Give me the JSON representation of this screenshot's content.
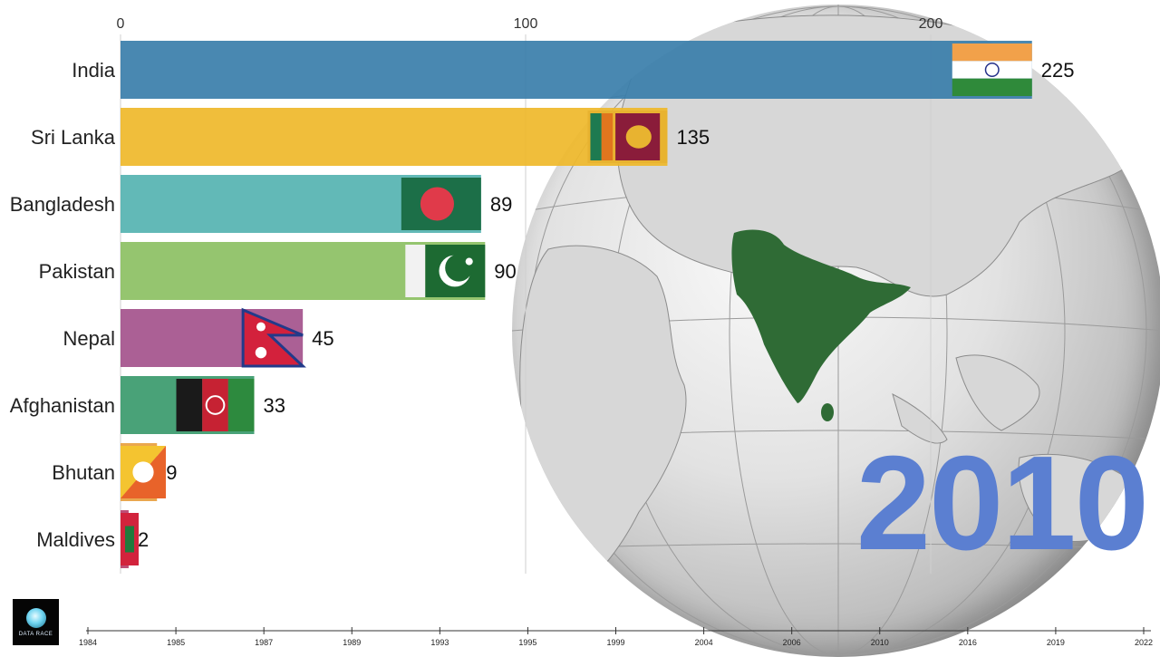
{
  "chart_data": {
    "type": "bar",
    "orientation": "horizontal",
    "categories": [
      "India",
      "Sri Lanka",
      "Bangladesh",
      "Pakistan",
      "Nepal",
      "Afghanistan",
      "Bhutan",
      "Maldives"
    ],
    "values": [
      225,
      135,
      89,
      90,
      45,
      33,
      9,
      2
    ],
    "value_labels": [
      "225",
      "135",
      "89",
      "90",
      "45",
      "33",
      "9",
      "2"
    ],
    "bar_colors": [
      "#3a7eaa",
      "#efb82a",
      "#55b3b1",
      "#8cc063",
      "#a4528c",
      "#3a9a6c",
      "#e8a040",
      "#b8406a"
    ],
    "xlim": [
      0,
      225
    ],
    "x_ticks": [
      0,
      100,
      200
    ],
    "x_tick_labels": [
      "0",
      "100",
      "200"
    ],
    "grid": true,
    "title": "",
    "xlabel": "",
    "ylabel": ""
  },
  "year": "2010",
  "logo_text": "DATA RACE",
  "timeline": {
    "labels": [
      "1984",
      "1985",
      "1987",
      "1989",
      "1993",
      "1995",
      "1999",
      "2004",
      "2006",
      "2010",
      "2016",
      "2019",
      "2022"
    ]
  },
  "flags": [
    "india-flag-icon",
    "sri-lanka-flag-icon",
    "bangladesh-flag-icon",
    "pakistan-flag-icon",
    "nepal-flag-icon",
    "afghanistan-flag-icon",
    "bhutan-flag-icon",
    "maldives-flag-icon"
  ]
}
